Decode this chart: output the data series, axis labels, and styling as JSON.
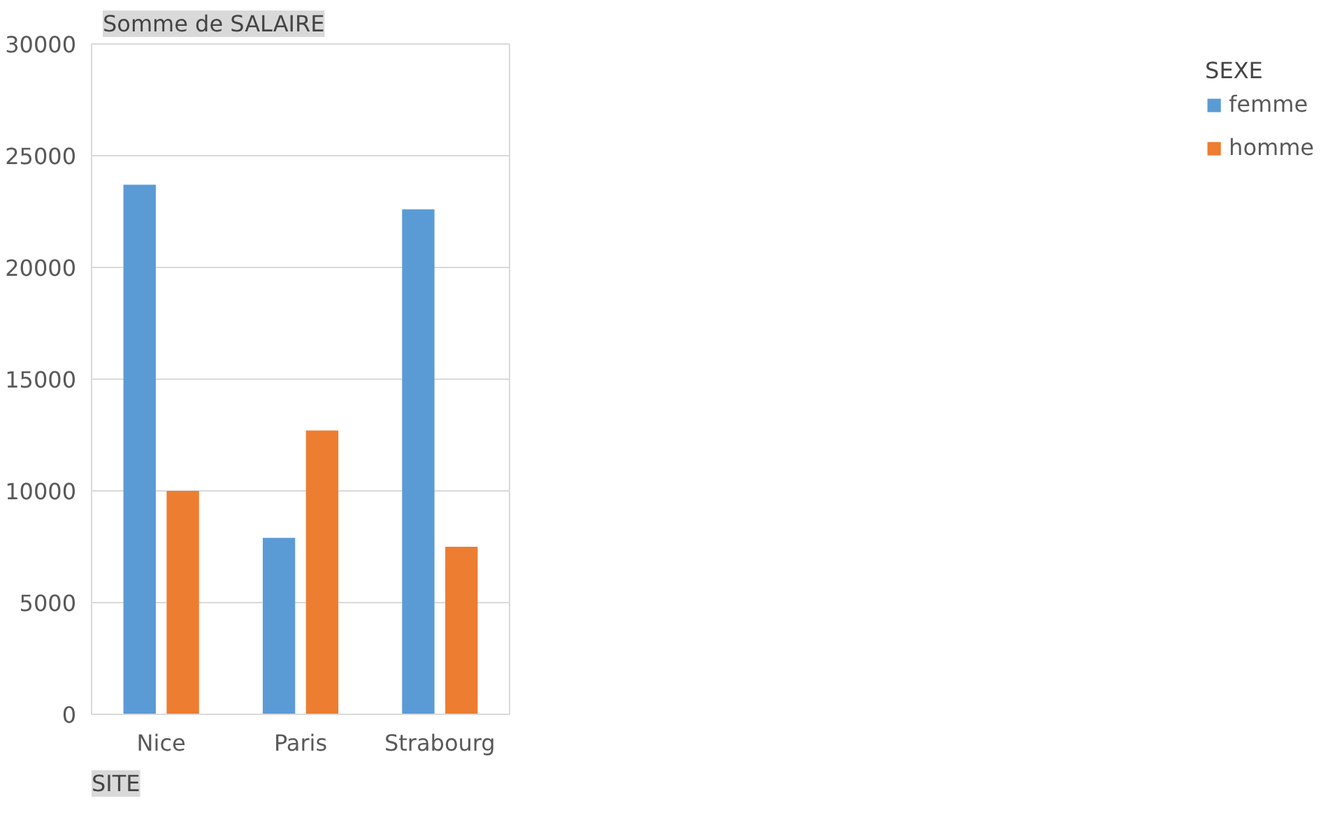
{
  "chart_data": {
    "type": "bar",
    "ylabel": "Somme de SALAIRE",
    "xlabel": "SITE",
    "legend_title": "SEXE",
    "categories": [
      "Nice",
      "Paris",
      "Strabourg"
    ],
    "series": [
      {
        "name": "femme",
        "color": "#5b9bd5",
        "values": [
          23700,
          7900,
          22600
        ]
      },
      {
        "name": "homme",
        "color": "#ed7d31",
        "values": [
          10000,
          12700,
          7500
        ]
      }
    ],
    "ylim": [
      0,
      30000
    ],
    "yticks": [
      0,
      5000,
      10000,
      15000,
      20000,
      25000,
      30000
    ],
    "grid": "y",
    "legend": "right"
  }
}
